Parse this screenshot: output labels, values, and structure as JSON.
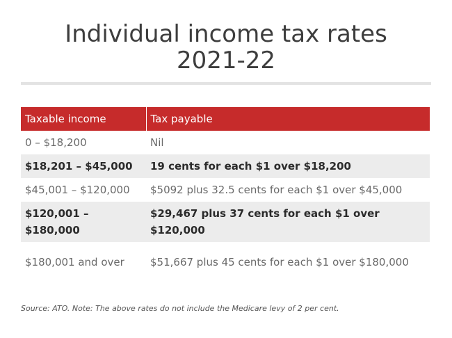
{
  "title": {
    "line1": "Individual income tax rates",
    "line2": "2021-22"
  },
  "table": {
    "headers": [
      "Taxable income",
      "Tax payable"
    ],
    "rows": [
      {
        "income": "0 – $18,200",
        "tax": "Nil"
      },
      {
        "income": "$18,201 – $45,000",
        "tax": "19 cents for each $1 over $18,200"
      },
      {
        "income": "$45,001 – $120,000",
        "tax": "$5092 plus 32.5 cents for each $1 over $45,000"
      },
      {
        "income": "$120,001 – $180,000",
        "tax": "$29,467 plus 37 cents for each $1 over $120,000"
      },
      {
        "income": "$180,001 and over",
        "tax": "$51,667 plus 45 cents for each $1 over $180,000"
      }
    ]
  },
  "source": "Source: ATO. Note: The above rates do not include the Medicare levy of 2 per cent.",
  "colors": {
    "header_background": "#c62b2b",
    "stripe_background": "#ececec"
  }
}
